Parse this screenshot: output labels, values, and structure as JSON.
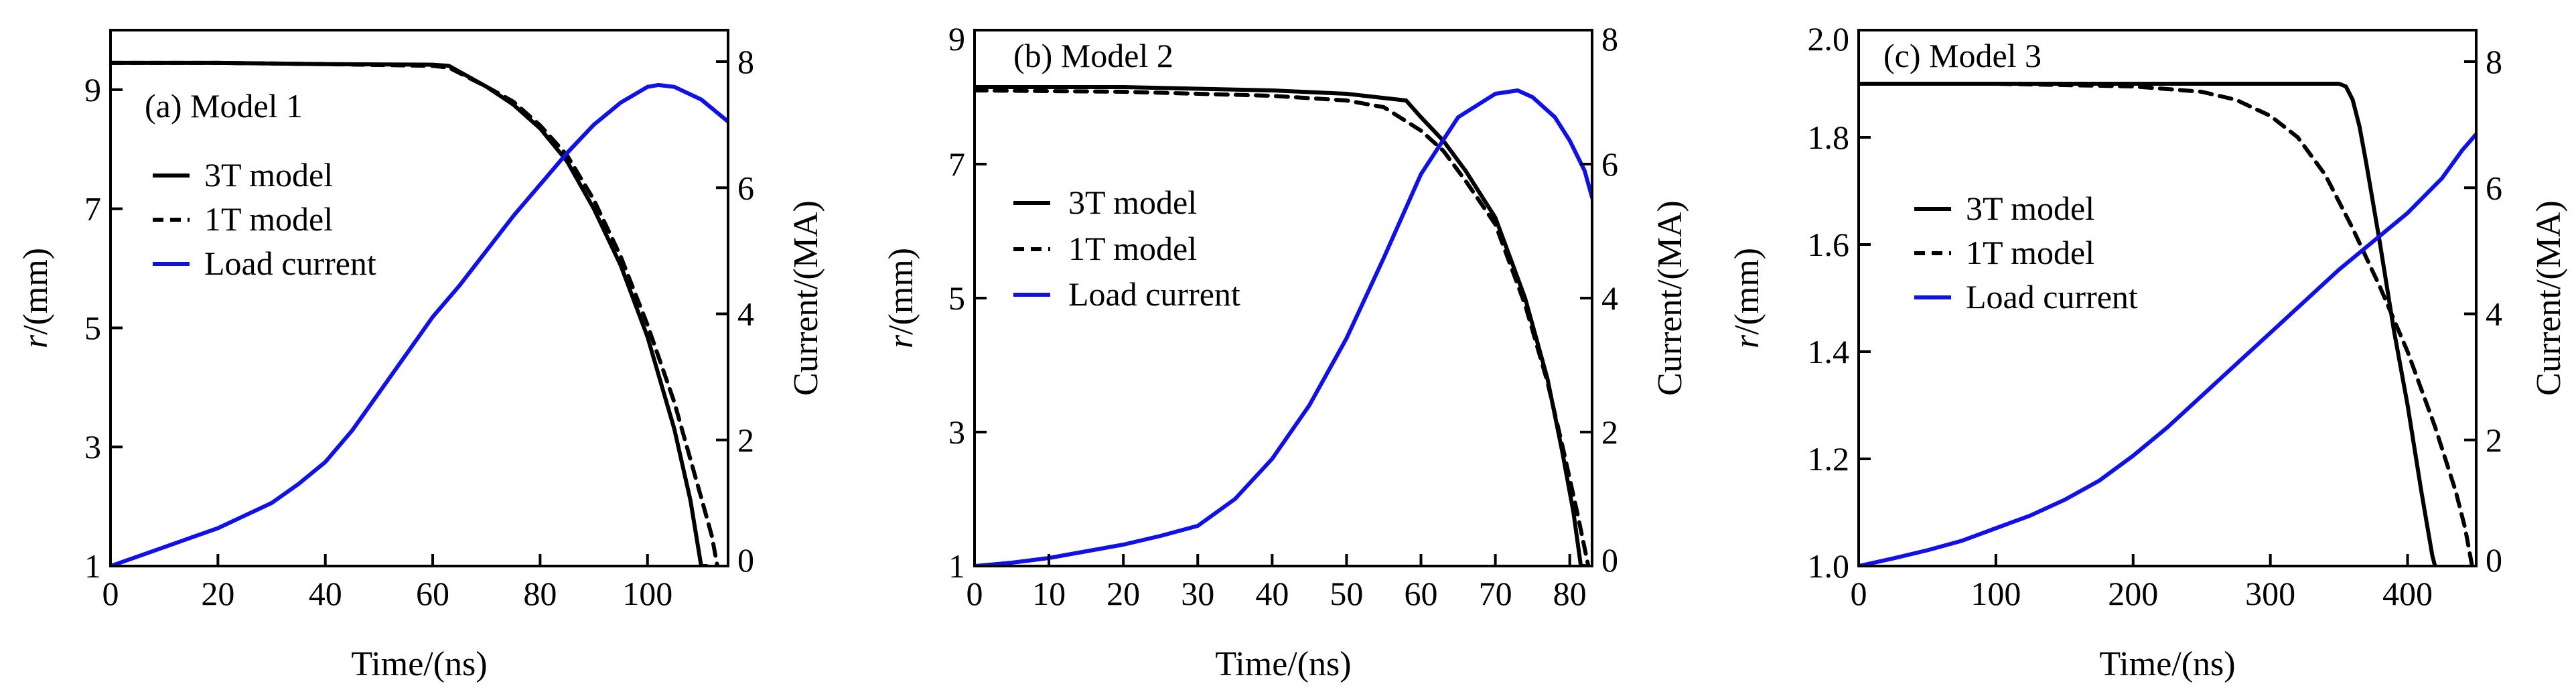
{
  "figure": {
    "description_free": true
  },
  "colors": {
    "axis": "#000000",
    "series_3t": "#000000",
    "series_1t": "#000000",
    "load_current": "#1010e8"
  },
  "chart_data": [
    {
      "type": "line",
      "title": "(a) Model 1",
      "xlabel": "Time/(ns)",
      "ylabel": "r/(mm)",
      "ylabel_var": "r",
      "ylabel_unit": "/(mm)",
      "y2label": "Current/(MA)",
      "xlim": [
        0,
        115
      ],
      "ylim": [
        1,
        10
      ],
      "y2lim": [
        0,
        8.5
      ],
      "xticks": [
        0,
        20,
        40,
        60,
        80,
        100
      ],
      "xtick_labels": [
        "0",
        "20",
        "40",
        "60",
        "80",
        "100"
      ],
      "yticks": [
        1,
        3,
        5,
        7,
        9
      ],
      "ytick_labels": [
        "1",
        "3",
        "5",
        "7",
        "9"
      ],
      "y2ticks": [
        0,
        2,
        4,
        6,
        8
      ],
      "y2tick_labels": [
        "0",
        "2",
        "4",
        "6",
        "8"
      ],
      "legend": [
        "3T model",
        "1T model",
        "Load current"
      ],
      "legend_position": "upper-left",
      "series": [
        {
          "name": "3T model",
          "axis": "left",
          "style": "solid",
          "x": [
            0,
            20,
            40,
            60,
            63,
            70,
            75,
            80,
            85,
            90,
            95,
            100,
            105,
            108,
            110,
            111
          ],
          "y": [
            9.45,
            9.45,
            9.43,
            9.42,
            9.4,
            9.05,
            8.75,
            8.35,
            7.8,
            7.0,
            6.05,
            4.85,
            3.3,
            2.1,
            1.0,
            1.0
          ]
        },
        {
          "name": "1T model",
          "axis": "left",
          "style": "dashed",
          "x": [
            0,
            20,
            40,
            60,
            63,
            70,
            75,
            80,
            85,
            90,
            95,
            100,
            105,
            110,
            112,
            113
          ],
          "y": [
            9.45,
            9.45,
            9.43,
            9.4,
            9.37,
            9.05,
            8.8,
            8.4,
            7.9,
            7.15,
            6.2,
            5.05,
            3.75,
            2.15,
            1.5,
            1.0
          ]
        },
        {
          "name": "Load current",
          "axis": "right",
          "style": "solid",
          "x": [
            0,
            5,
            10,
            15,
            20,
            25,
            30,
            35,
            40,
            45,
            50,
            55,
            60,
            65,
            70,
            75,
            80,
            85,
            90,
            95,
            100,
            102,
            105,
            110,
            115
          ],
          "y": [
            0,
            0.15,
            0.3,
            0.45,
            0.6,
            0.8,
            1.0,
            1.3,
            1.65,
            2.15,
            2.75,
            3.35,
            3.95,
            4.45,
            5.0,
            5.55,
            6.05,
            6.55,
            7.0,
            7.35,
            7.6,
            7.63,
            7.6,
            7.4,
            7.05
          ]
        }
      ]
    },
    {
      "type": "line",
      "title": "(b) Model 2",
      "xlabel": "Time/(ns)",
      "ylabel": "r/(mm)",
      "ylabel_var": "r",
      "ylabel_unit": "/(mm)",
      "y2label": "Current/(MA)",
      "xlim": [
        0,
        83
      ],
      "ylim": [
        1,
        9
      ],
      "y2lim": [
        0,
        8
      ],
      "xticks": [
        0,
        10,
        20,
        30,
        40,
        50,
        60,
        70,
        80
      ],
      "xtick_labels": [
        "0",
        "10",
        "20",
        "30",
        "40",
        "50",
        "60",
        "70",
        "80"
      ],
      "yticks": [
        1,
        3,
        5,
        7,
        9
      ],
      "ytick_labels": [
        "1",
        "3",
        "5",
        "7",
        "9"
      ],
      "y2ticks": [
        0,
        2,
        4,
        6,
        8
      ],
      "y2tick_labels": [
        "0",
        "2",
        "4",
        "6",
        "8"
      ],
      "legend": [
        "3T model",
        "1T model",
        "Load current"
      ],
      "legend_position": "center-left",
      "series": [
        {
          "name": "3T model",
          "axis": "left",
          "style": "solid",
          "x": [
            0,
            20,
            40,
            50,
            58,
            60,
            63,
            66,
            70,
            74,
            77,
            79,
            80.5,
            81.5,
            82
          ],
          "y": [
            8.15,
            8.15,
            8.1,
            8.05,
            7.95,
            7.7,
            7.35,
            6.9,
            6.2,
            5.0,
            3.8,
            2.7,
            1.8,
            1.0,
            1.0
          ]
        },
        {
          "name": "1T model",
          "axis": "left",
          "style": "dashed",
          "x": [
            0,
            20,
            40,
            50,
            55,
            60,
            63,
            66,
            70,
            74,
            77,
            79,
            81,
            82.5
          ],
          "y": [
            8.1,
            8.08,
            8.02,
            7.95,
            7.85,
            7.5,
            7.2,
            6.75,
            6.1,
            4.9,
            3.75,
            2.8,
            1.8,
            1.0
          ]
        },
        {
          "name": "Load current",
          "axis": "right",
          "style": "solid",
          "x": [
            0,
            5,
            10,
            15,
            20,
            25,
            30,
            35,
            40,
            45,
            50,
            55,
            60,
            65,
            70,
            73,
            75,
            78,
            80,
            82,
            83
          ],
          "y": [
            0,
            0.05,
            0.12,
            0.22,
            0.32,
            0.45,
            0.6,
            1.0,
            1.6,
            2.4,
            3.4,
            4.6,
            5.85,
            6.7,
            7.05,
            7.1,
            7.0,
            6.7,
            6.35,
            5.9,
            5.5
          ]
        }
      ]
    },
    {
      "type": "line",
      "title": "(c) Model 3",
      "xlabel": "Time/(ns)",
      "ylabel": "r/(mm)",
      "ylabel_var": "r",
      "ylabel_unit": "/(mm)",
      "y2label": "Current/(MA)",
      "xlim": [
        0,
        450
      ],
      "ylim": [
        1.0,
        2.0
      ],
      "y2lim": [
        0,
        8.5
      ],
      "xticks": [
        0,
        100,
        200,
        300,
        400
      ],
      "xtick_labels": [
        "0",
        "100",
        "200",
        "300",
        "400"
      ],
      "yticks": [
        1.0,
        1.2,
        1.4,
        1.6,
        1.8,
        2.0
      ],
      "ytick_labels": [
        "1.0",
        "1.2",
        "1.4",
        "1.6",
        "1.8",
        "2.0"
      ],
      "y2ticks": [
        0,
        2,
        4,
        6,
        8
      ],
      "y2tick_labels": [
        "0",
        "2",
        "4",
        "6",
        "8"
      ],
      "legend": [
        "3T model",
        "1T model",
        "Load current"
      ],
      "legend_position": "center-left",
      "series": [
        {
          "name": "3T model",
          "axis": "left",
          "style": "solid",
          "x": [
            0,
            200,
            340,
            350,
            355,
            360,
            365,
            370,
            380,
            390,
            400,
            410,
            418,
            420
          ],
          "y": [
            1.9,
            1.9,
            1.9,
            1.9,
            1.895,
            1.87,
            1.82,
            1.75,
            1.6,
            1.44,
            1.3,
            1.14,
            1.02,
            1.0
          ]
        },
        {
          "name": "1T model",
          "axis": "left",
          "style": "dashed",
          "x": [
            0,
            100,
            200,
            250,
            275,
            300,
            320,
            340,
            360,
            380,
            400,
            420,
            435,
            442,
            447
          ],
          "y": [
            1.9,
            1.9,
            1.895,
            1.885,
            1.87,
            1.84,
            1.8,
            1.73,
            1.63,
            1.52,
            1.4,
            1.26,
            1.14,
            1.07,
            1.0
          ]
        },
        {
          "name": "Load current",
          "axis": "right",
          "style": "solid",
          "x": [
            0,
            25,
            50,
            75,
            100,
            125,
            150,
            175,
            200,
            225,
            250,
            275,
            300,
            325,
            350,
            375,
            400,
            425,
            440,
            450
          ],
          "y": [
            0,
            0.12,
            0.25,
            0.4,
            0.6,
            0.8,
            1.05,
            1.35,
            1.75,
            2.2,
            2.7,
            3.2,
            3.7,
            4.2,
            4.7,
            5.15,
            5.6,
            6.15,
            6.6,
            6.85
          ]
        }
      ]
    }
  ]
}
